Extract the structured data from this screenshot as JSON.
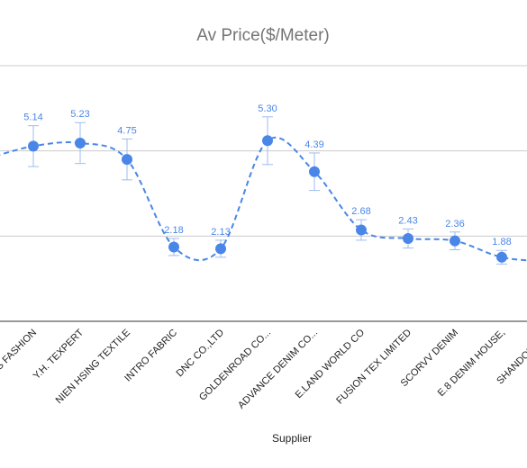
{
  "chart_data": {
    "type": "line",
    "title": "Av Price($/Meter)",
    "xlabel": "Supplier",
    "ylabel": "",
    "ylim": [
      0,
      7.5
    ],
    "grid": true,
    "smooth": true,
    "line_style": "dashed",
    "series_color": "#4a86e8",
    "gridline_values": [
      2.5,
      5.0,
      7.5
    ],
    "categories": [
      "G.S FASHION",
      "Y.H. TEXPERT",
      "NIEN HSING TEXTILE",
      "INTRO FABRIC",
      "DNC CO.,LTD",
      "GOLDENROAD CO...",
      "ADVANCE DENIM CO...",
      "E.LAND WORLD CO",
      "FUSION TEX LIMITED",
      "SCORVV DENIM",
      "E.8 DENIM HOUSE,",
      "SHANDONG T..."
    ],
    "series": [
      {
        "values": [
          5.14,
          5.23,
          4.75,
          2.18,
          2.13,
          5.3,
          4.39,
          2.68,
          2.43,
          2.36,
          1.88,
          1.75
        ],
        "value_labels": [
          "5.14",
          "5.23",
          "4.75",
          "2.18",
          "2.13",
          "5.30",
          "4.39",
          "2.68",
          "2.43",
          "2.36",
          "1.88",
          ""
        ],
        "error": [
          0.6,
          0.6,
          0.6,
          0.25,
          0.25,
          0.7,
          0.55,
          0.3,
          0.28,
          0.26,
          0.2,
          0.2
        ]
      }
    ]
  }
}
